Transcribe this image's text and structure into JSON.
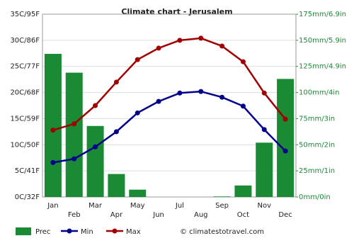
{
  "chart_data": {
    "type": "combo",
    "title": "Climate chart - Jerusalem",
    "categories": [
      "Jan",
      "Feb",
      "Mar",
      "Apr",
      "May",
      "Jun",
      "Jul",
      "Aug",
      "Sep",
      "Oct",
      "Nov",
      "Dec"
    ],
    "series": [
      {
        "name": "Prec",
        "type": "bar",
        "axis": "y2",
        "color": "#1a8a35",
        "values": [
          137,
          119,
          68,
          22,
          7,
          0,
          0,
          0,
          0.5,
          11,
          52,
          113
        ]
      },
      {
        "name": "Min",
        "type": "line",
        "color": "#00008b",
        "values": [
          6.6,
          7.3,
          9.6,
          12.5,
          16.1,
          18.3,
          19.9,
          20.2,
          19.1,
          17.4,
          12.9,
          8.8
        ]
      },
      {
        "name": "Max",
        "type": "line",
        "color": "#a00000",
        "values": [
          12.8,
          14,
          17.5,
          22,
          26.3,
          28.5,
          30,
          30.4,
          28.9,
          25.9,
          19.9,
          14.9
        ]
      }
    ],
    "ylim": [
      0,
      35
    ],
    "yticks": [
      {
        "value": 0,
        "label": "0C/32F"
      },
      {
        "value": 5,
        "label": "5C/41F"
      },
      {
        "value": 10,
        "label": "10C/50F"
      },
      {
        "value": 15,
        "label": "15C/59F"
      },
      {
        "value": 20,
        "label": "20C/68F"
      },
      {
        "value": 25,
        "label": "25C/77F"
      },
      {
        "value": 30,
        "label": "30C/86F"
      },
      {
        "value": 35,
        "label": "35C/95F"
      }
    ],
    "y2lim": [
      0,
      175
    ],
    "y2ticks": [
      {
        "value": 0,
        "label": "0mm/0in"
      },
      {
        "value": 25,
        "label": "25mm/1in"
      },
      {
        "value": 50,
        "label": "50mm/2in"
      },
      {
        "value": 75,
        "label": "75mm/3in"
      },
      {
        "value": 100,
        "label": "100mm/4in"
      },
      {
        "value": 125,
        "label": "125mm/4.9in"
      },
      {
        "value": 150,
        "label": "150mm/5.9in"
      },
      {
        "value": 175,
        "label": "175mm/6.9in"
      }
    ],
    "grid": true,
    "credit": "© climatestotravel.com"
  }
}
